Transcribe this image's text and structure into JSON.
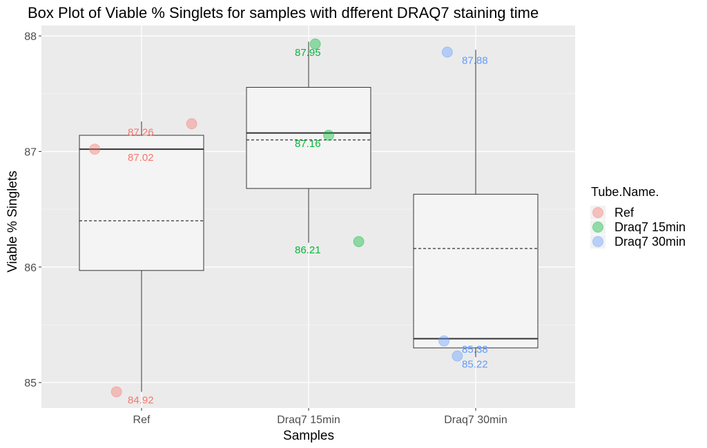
{
  "chart_data": {
    "type": "box",
    "title": "Box Plot of Viable % Singlets for samples with dfferent DRAQ7 staining time",
    "xlabel": "Samples",
    "ylabel": "Viable % Singlets",
    "categories": [
      "Ref",
      "Draq7 15min",
      "Draq7 30min"
    ],
    "ylim": [
      84.78,
      88.09
    ],
    "yticks": [
      85,
      86,
      87,
      88
    ],
    "grid": true,
    "legend": {
      "title": "Tube.Name.",
      "placement": "right",
      "entries": [
        {
          "label": "Ref",
          "color": "#F8766D"
        },
        {
          "label": "Draq7 15min",
          "color": "#00BA38"
        },
        {
          "label": "Draq7 30min",
          "color": "#619CFF"
        }
      ]
    },
    "boxes": [
      {
        "category": "Ref",
        "min": 84.92,
        "q1": 85.97,
        "median": 87.02,
        "q3": 87.14,
        "max": 87.26,
        "mean": 86.4
      },
      {
        "category": "Draq7 15min",
        "min": 86.21,
        "q1": 86.68,
        "median": 87.16,
        "q3": 87.555,
        "max": 87.95,
        "mean": 87.1
      },
      {
        "category": "Draq7 30min",
        "min": 85.22,
        "q1": 85.3,
        "median": 85.38,
        "q3": 86.63,
        "max": 87.88,
        "mean": 86.16
      }
    ],
    "points": [
      {
        "category": "Ref",
        "value": 84.92,
        "jitter": -0.15,
        "label": "84.92"
      },
      {
        "category": "Ref",
        "value": 87.02,
        "jitter": -0.28,
        "label": "87.02"
      },
      {
        "category": "Ref",
        "value": 87.24,
        "jitter": 0.3,
        "label": "87.26"
      },
      {
        "category": "Draq7 15min",
        "value": 87.93,
        "jitter": 0.04,
        "label": "87.95"
      },
      {
        "category": "Draq7 15min",
        "value": 87.14,
        "jitter": 0.12,
        "label": "87.16"
      },
      {
        "category": "Draq7 15min",
        "value": 86.22,
        "jitter": 0.3,
        "label": "86.21"
      },
      {
        "category": "Draq7 30min",
        "value": 87.86,
        "jitter": -0.17,
        "label": "87.88"
      },
      {
        "category": "Draq7 30min",
        "value": 85.36,
        "jitter": -0.19,
        "label": "85.38"
      },
      {
        "category": "Draq7 30min",
        "value": 85.23,
        "jitter": -0.11,
        "label": "85.22"
      }
    ]
  }
}
